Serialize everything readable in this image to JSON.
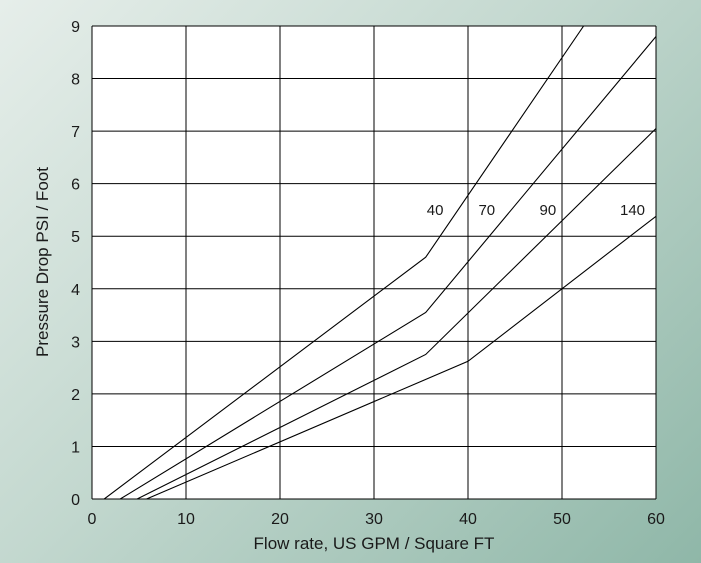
{
  "chart_data": {
    "type": "line",
    "xlabel": "Flow rate, US GPM / Square FT",
    "ylabel": "Pressure Drop PSI / Foot",
    "xlim": [
      0,
      60
    ],
    "ylim": [
      0,
      9
    ],
    "xticks": [
      "0",
      "10",
      "20",
      "30",
      "40",
      "50",
      "60"
    ],
    "yticks": [
      "0",
      "1",
      "2",
      "3",
      "4",
      "5",
      "6",
      "7",
      "8",
      "9"
    ],
    "grid": true,
    "series": [
      {
        "name": "40",
        "label_at": [
          36.5,
          5.4
        ],
        "points": [
          [
            1.3,
            0
          ],
          [
            35.5,
            4.6
          ],
          [
            52.3,
            9
          ]
        ]
      },
      {
        "name": "70",
        "label_at": [
          42.0,
          5.4
        ],
        "points": [
          [
            3.0,
            0
          ],
          [
            35.5,
            3.55
          ],
          [
            60,
            8.8
          ]
        ]
      },
      {
        "name": "90",
        "label_at": [
          48.5,
          5.4
        ],
        "points": [
          [
            4.8,
            0
          ],
          [
            35.5,
            2.75
          ],
          [
            60,
            7.05
          ]
        ]
      },
      {
        "name": "140",
        "label_at": [
          57.5,
          5.4
        ],
        "points": [
          [
            5.8,
            0
          ],
          [
            40.0,
            2.62
          ],
          [
            60,
            5.38
          ]
        ]
      }
    ]
  }
}
